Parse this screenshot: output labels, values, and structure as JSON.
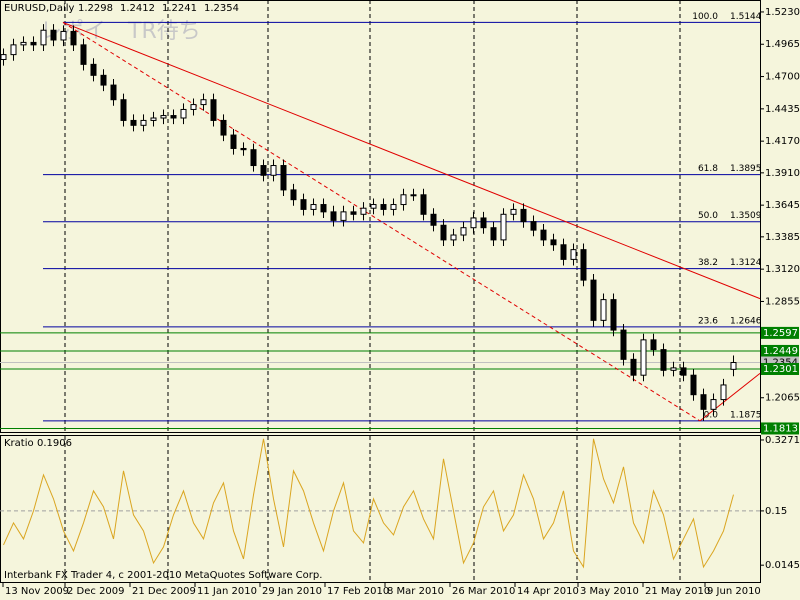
{
  "chart_data": {
    "type": "candlestick",
    "title": "EURUSD,Daily",
    "footer": "Interbank FX Trader 4, c 2001-2010 MetaQuotes Software Corp.",
    "watermark": "レポイ　TR待ち",
    "xlim": [
      -0.3,
      75.7
    ],
    "ylim": [
      1.1784,
      1.5328
    ],
    "xticks": [
      {
        "value": 0,
        "label": "13 Nov 2009"
      },
      {
        "value": 6.2,
        "label": "2 Dec 2009"
      },
      {
        "value": 12.7,
        "label": "21 Dec 2009"
      },
      {
        "value": 19.2,
        "label": "11 Jan 2010"
      },
      {
        "value": 25.7,
        "label": "29 Jan 2010"
      },
      {
        "value": 32.2,
        "label": "17 Feb 2010"
      },
      {
        "value": 38.2,
        "label": "8 Mar 2010"
      },
      {
        "value": 44.7,
        "label": "26 Mar 2010"
      },
      {
        "value": 51.2,
        "label": "14 Apr 2010"
      },
      {
        "value": 57.5,
        "label": "3 May 2010"
      },
      {
        "value": 64,
        "label": "21 May 2010"
      },
      {
        "value": 70.2,
        "label": "9 Jun 2010"
      }
    ],
    "period_separators": [
      6.2,
      16.5,
      26.5,
      36.7,
      47.1,
      57.4,
      67.7
    ],
    "yticks": [
      {
        "value": 1.523,
        "label": "1.5230"
      },
      1.4965,
      {
        "value": 1.47,
        "label": "1.4700"
      },
      1.4435,
      {
        "value": 1.417,
        "label": "1.4170"
      },
      {
        "value": 1.391,
        "label": "1.3910"
      },
      1.3645,
      1.3385,
      {
        "value": 1.312,
        "label": "1.3120"
      },
      1.2855,
      1.2065
    ],
    "color": "#000000",
    "ohlc": [
      [
        1.484,
        1.493,
        1.479,
        1.488
      ],
      [
        1.488,
        1.501,
        1.483,
        1.496
      ],
      [
        1.496,
        1.503,
        1.491,
        1.498
      ],
      [
        1.498,
        1.503,
        1.491,
        1.496
      ],
      [
        1.496,
        1.513,
        1.491,
        1.508
      ],
      [
        1.508,
        1.513,
        1.495,
        1.5
      ],
      [
        1.5,
        1.512,
        1.495,
        1.507
      ],
      [
        1.507,
        1.512,
        1.491,
        1.496
      ],
      [
        1.496,
        1.501,
        1.475,
        1.48
      ],
      [
        1.48,
        1.485,
        1.466,
        1.471
      ],
      [
        1.471,
        1.476,
        1.458,
        1.463
      ],
      [
        1.463,
        1.468,
        1.446,
        1.451
      ],
      [
        1.451,
        1.456,
        1.429,
        1.434
      ],
      [
        1.434,
        1.439,
        1.425,
        1.43
      ],
      [
        1.43,
        1.439,
        1.425,
        1.434
      ],
      [
        1.434,
        1.441,
        1.429,
        1.436
      ],
      [
        1.436,
        1.443,
        1.431,
        1.438
      ],
      [
        1.438,
        1.443,
        1.431,
        1.436
      ],
      [
        1.436,
        1.448,
        1.431,
        1.443
      ],
      [
        1.443,
        1.452,
        1.438,
        1.447
      ],
      [
        1.447,
        1.456,
        1.442,
        1.451
      ],
      [
        1.451,
        1.456,
        1.429,
        1.434
      ],
      [
        1.434,
        1.439,
        1.417,
        1.422
      ],
      [
        1.422,
        1.427,
        1.406,
        1.411
      ],
      [
        1.411,
        1.416,
        1.405,
        1.41
      ],
      [
        1.41,
        1.415,
        1.392,
        1.397
      ],
      [
        1.397,
        1.402,
        1.384,
        1.389
      ],
      [
        1.389,
        1.402,
        1.384,
        1.397
      ],
      [
        1.397,
        1.402,
        1.372,
        1.377
      ],
      [
        1.377,
        1.382,
        1.364,
        1.369
      ],
      [
        1.369,
        1.374,
        1.356,
        1.361
      ],
      [
        1.361,
        1.37,
        1.356,
        1.365
      ],
      [
        1.365,
        1.37,
        1.354,
        1.359
      ],
      [
        1.359,
        1.364,
        1.347,
        1.352
      ],
      [
        1.352,
        1.364,
        1.347,
        1.359
      ],
      [
        1.359,
        1.364,
        1.352,
        1.357
      ],
      [
        1.357,
        1.367,
        1.352,
        1.362
      ],
      [
        1.362,
        1.37,
        1.357,
        1.365
      ],
      [
        1.365,
        1.37,
        1.356,
        1.361
      ],
      [
        1.361,
        1.37,
        1.356,
        1.365
      ],
      [
        1.365,
        1.378,
        1.36,
        1.373
      ],
      [
        1.373,
        1.378,
        1.368,
        1.373
      ],
      [
        1.373,
        1.378,
        1.352,
        1.357
      ],
      [
        1.357,
        1.362,
        1.343,
        1.348
      ],
      [
        1.348,
        1.353,
        1.331,
        1.336
      ],
      [
        1.336,
        1.345,
        1.331,
        1.34
      ],
      [
        1.34,
        1.351,
        1.335,
        1.346
      ],
      [
        1.346,
        1.359,
        1.341,
        1.354
      ],
      [
        1.354,
        1.359,
        1.341,
        1.346
      ],
      [
        1.346,
        1.351,
        1.331,
        1.336
      ],
      [
        1.336,
        1.362,
        1.331,
        1.357
      ],
      [
        1.357,
        1.366,
        1.352,
        1.361
      ],
      [
        1.361,
        1.366,
        1.346,
        1.351
      ],
      [
        1.351,
        1.356,
        1.339,
        1.344
      ],
      [
        1.344,
        1.349,
        1.331,
        1.336
      ],
      [
        1.336,
        1.341,
        1.327,
        1.332
      ],
      [
        1.332,
        1.337,
        1.315,
        1.32
      ],
      [
        1.32,
        1.333,
        1.315,
        1.328
      ],
      [
        1.328,
        1.333,
        1.298,
        1.303
      ],
      [
        1.303,
        1.308,
        1.265,
        1.27
      ],
      [
        1.27,
        1.292,
        1.265,
        1.287
      ],
      [
        1.287,
        1.292,
        1.257,
        1.262
      ],
      [
        1.262,
        1.267,
        1.233,
        1.238
      ],
      [
        1.238,
        1.243,
        1.22,
        1.225
      ],
      [
        1.225,
        1.259,
        1.22,
        1.254
      ],
      [
        1.254,
        1.259,
        1.241,
        1.246
      ],
      [
        1.246,
        1.251,
        1.224,
        1.229
      ],
      [
        1.229,
        1.236,
        1.224,
        1.231
      ],
      [
        1.231,
        1.236,
        1.22,
        1.225
      ],
      [
        1.225,
        1.23,
        1.204,
        1.209
      ],
      [
        1.209,
        1.214,
        1.1875,
        1.197
      ],
      [
        1.197,
        1.21,
        1.192,
        1.205
      ],
      [
        1.205,
        1.222,
        1.2,
        1.217
      ],
      [
        1.2298,
        1.2412,
        1.2241,
        1.2354
      ]
    ],
    "fib": {
      "color": "#0000a0",
      "levels": [
        {
          "level": "100.0",
          "price": 1.5144
        },
        {
          "level": "61.8",
          "price": 1.3895
        },
        {
          "level": "50.0",
          "price": 1.3509
        },
        {
          "level": "38.2",
          "price": 1.3124
        },
        {
          "level": "23.6",
          "price": 1.2646
        },
        {
          "level": "0.0",
          "price": 1.1875
        }
      ]
    },
    "price_tags": [
      {
        "value": 1.2597,
        "color": "#008000"
      },
      {
        "value": 1.2449,
        "color": "#008000"
      },
      {
        "value": 1.2354,
        "color": "#c0c0c0"
      },
      {
        "value": 1.2301,
        "color": "#008000"
      },
      {
        "value": 1.1813,
        "color": "#008000"
      }
    ],
    "trendlines": [
      {
        "color": "#e00000",
        "dash": false,
        "points": [
          [
            6,
            1.5144
          ],
          [
            75.7,
            1.2878
          ]
        ]
      },
      {
        "color": "#e00000",
        "dash": true,
        "points": [
          [
            6,
            1.5144
          ],
          [
            69.7,
            1.1875
          ]
        ]
      },
      {
        "color": "#e00000",
        "dash": false,
        "points": [
          [
            69.7,
            1.1875
          ],
          [
            75.7,
            1.2265
          ]
        ]
      }
    ],
    "indicator": {
      "title": "Kratio",
      "last": 0.1906,
      "color": "#daa520",
      "ylim": [
        -0.03,
        0.337
      ],
      "yticks": [
        0.3271,
        0.15,
        0.0145
      ],
      "level": 0.15,
      "values": [
        0.065,
        0.12,
        0.08,
        0.15,
        0.24,
        0.18,
        0.1,
        0.05,
        0.12,
        0.2,
        0.16,
        0.08,
        0.25,
        0.14,
        0.1,
        0.02,
        0.06,
        0.14,
        0.2,
        0.12,
        0.08,
        0.17,
        0.22,
        0.1,
        0.03,
        0.19,
        0.33,
        0.18,
        0.06,
        0.25,
        0.2,
        0.12,
        0.05,
        0.15,
        0.22,
        0.1,
        0.07,
        0.18,
        0.12,
        0.09,
        0.16,
        0.2,
        0.13,
        0.08,
        0.28,
        0.15,
        0.02,
        0.07,
        0.16,
        0.2,
        0.1,
        0.14,
        0.24,
        0.18,
        0.08,
        0.12,
        0.2,
        0.05,
        0.01,
        0.33,
        0.23,
        0.17,
        0.26,
        0.12,
        0.07,
        0.2,
        0.14,
        0.03,
        0.08,
        0.13,
        0.01,
        0.05,
        0.1,
        0.1906
      ]
    }
  }
}
